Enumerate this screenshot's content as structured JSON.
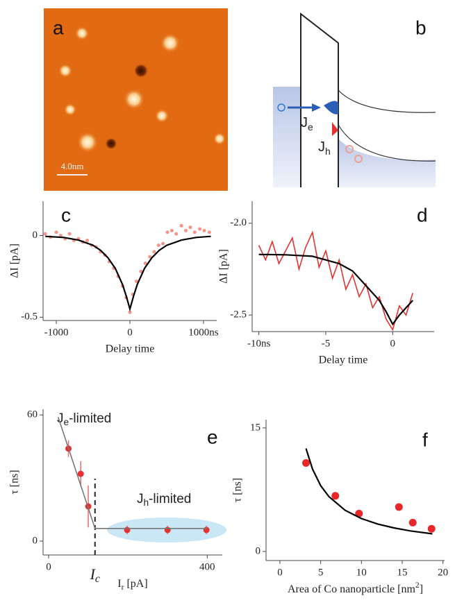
{
  "image_panel": {
    "label": "a",
    "scale_bar": "4.0nm"
  },
  "diagram_panel": {
    "label": "b",
    "electron_flux": {
      "main": "J",
      "sub": "e"
    },
    "hole_flux": {
      "main": "J",
      "sub": "h"
    }
  },
  "chart_data": [
    {
      "type": "scatter",
      "label": "c",
      "xlabel": "Delay time",
      "ylabel": "ΔI [pA]",
      "xlim": [
        -1180,
        1180
      ],
      "ylim": [
        -0.52,
        0.21
      ],
      "xticks": [
        -1000,
        0,
        {
          "value": 1000,
          "label": "1000ns"
        }
      ],
      "yticks": [
        0,
        -0.5
      ],
      "series": [
        {
          "type": "scatter",
          "color": "#f07060",
          "x": [
            -1150,
            -1080,
            -1000,
            -940,
            -880,
            -820,
            -760,
            -700,
            -640,
            -580,
            -520,
            -460,
            -400,
            -340,
            -280,
            -220,
            -160,
            -100,
            -50,
            0,
            40,
            90,
            150,
            210,
            270,
            330,
            390,
            450,
            510,
            570,
            630,
            700,
            760,
            820,
            880,
            950,
            1010,
            1080
          ],
          "values": [
            0.01,
            -0.01,
            0.02,
            0.0,
            -0.02,
            0.01,
            -0.03,
            -0.02,
            -0.04,
            -0.03,
            -0.06,
            -0.07,
            -0.1,
            -0.12,
            -0.16,
            -0.2,
            -0.25,
            -0.31,
            -0.38,
            -0.47,
            -0.36,
            -0.28,
            -0.22,
            -0.17,
            -0.13,
            -0.1,
            -0.06,
            -0.05,
            0.02,
            0.03,
            0.01,
            0.06,
            0.03,
            0.05,
            0.02,
            0.04,
            0.03,
            0.02
          ]
        },
        {
          "type": "line",
          "color": "#000000",
          "x": [
            -1150,
            -900,
            -700,
            -500,
            -400,
            -300,
            -200,
            -100,
            -50,
            0,
            50,
            100,
            200,
            300,
            400,
            500,
            700,
            900,
            1100
          ],
          "values": [
            -0.005,
            -0.012,
            -0.028,
            -0.06,
            -0.09,
            -0.135,
            -0.2,
            -0.3,
            -0.37,
            -0.45,
            -0.37,
            -0.3,
            -0.2,
            -0.135,
            -0.09,
            -0.06,
            -0.028,
            -0.012,
            -0.005
          ]
        }
      ]
    },
    {
      "type": "line",
      "label": "d",
      "xlabel": "Delay time",
      "ylabel": "ΔI [pA]",
      "xlim": [
        -10.5,
        3.1
      ],
      "ylim": [
        -2.59,
        -1.88
      ],
      "xticks": [
        {
          "value": -10,
          "label": "-10ns"
        },
        -5,
        0
      ],
      "yticks": [
        {
          "value": -2.0,
          "label": "-2.0"
        },
        -2.5
      ],
      "series": [
        {
          "type": "line",
          "color": "#e83030",
          "x": [
            -10,
            -9.5,
            -9,
            -8.5,
            -8,
            -7.5,
            -7,
            -6.5,
            -6,
            -5.5,
            -5,
            -4.5,
            -4,
            -3.5,
            -3,
            -2.5,
            -2,
            -1.5,
            -1,
            -0.5,
            0,
            0.5,
            1,
            1.5
          ],
          "values": [
            -2.12,
            -2.2,
            -2.1,
            -2.22,
            -2.15,
            -2.08,
            -2.25,
            -2.13,
            -2.05,
            -2.24,
            -2.15,
            -2.3,
            -2.2,
            -2.36,
            -2.28,
            -2.4,
            -2.33,
            -2.46,
            -2.4,
            -2.52,
            -2.58,
            -2.45,
            -2.5,
            -2.38
          ]
        },
        {
          "type": "line",
          "color": "#000000",
          "x": [
            -10,
            -8,
            -6,
            -5,
            -4,
            -3,
            -2,
            -1,
            -0.5,
            0,
            0.5,
            1,
            1.5
          ],
          "values": [
            -2.17,
            -2.172,
            -2.18,
            -2.2,
            -2.22,
            -2.26,
            -2.34,
            -2.42,
            -2.48,
            -2.55,
            -2.5,
            -2.46,
            -2.42
          ]
        }
      ]
    },
    {
      "type": "scatter",
      "label": "e",
      "xlabel": {
        "main": "I",
        "sub": "r",
        "rest": " [pA]"
      },
      "ylabel": "τ [ns]",
      "xlim": [
        -14,
        438
      ],
      "ylim": [
        -6.6,
        62.7
      ],
      "xticks": [
        0,
        400
      ],
      "yticks": [
        0,
        60
      ],
      "ic": {
        "value": 117,
        "label": {
          "main": "I",
          "sub": "c"
        }
      },
      "je_label": {
        "main": "J",
        "sub": "e",
        "rest": "-limited"
      },
      "jh_label": {
        "main": "J",
        "sub": "h",
        "rest": "-limited"
      },
      "series": [
        {
          "type": "scatter",
          "color": "#e83030",
          "x": [
            50,
            81,
            100,
            198,
            300,
            398
          ],
          "values": [
            44,
            32,
            16.5,
            5.3,
            5.3,
            5.3
          ],
          "errors": [
            4,
            6,
            10,
            2,
            2,
            2
          ]
        },
        {
          "type": "line",
          "color": "#777777",
          "x": [
            24,
            117,
            400
          ],
          "values": [
            59,
            6,
            6
          ]
        }
      ]
    },
    {
      "type": "scatter",
      "label": "f",
      "xlabel": {
        "main": "Area of Co nanoparticle [nm",
        "sup": "2",
        "rest": "]"
      },
      "ylabel": "τ [ns]",
      "xlim": [
        -1.7,
        20.2
      ],
      "ylim": [
        -1.1,
        16
      ],
      "xticks": [
        0,
        5,
        10,
        15,
        20
      ],
      "yticks": [
        0,
        15
      ],
      "series": [
        {
          "type": "scatter",
          "color": "#e82828",
          "x": [
            3.2,
            6.8,
            9.7,
            14.6,
            16.3,
            18.6
          ],
          "values": [
            10.75,
            6.75,
            4.6,
            5.4,
            3.5,
            2.75
          ]
        },
        {
          "type": "line",
          "color": "#000000",
          "x": [
            3.2,
            4,
            5,
            6,
            8,
            10,
            12,
            14,
            16,
            18.7
          ],
          "values": [
            12.5,
            10,
            8,
            6.67,
            5,
            4,
            3.33,
            2.86,
            2.5,
            2.14
          ]
        }
      ]
    }
  ]
}
